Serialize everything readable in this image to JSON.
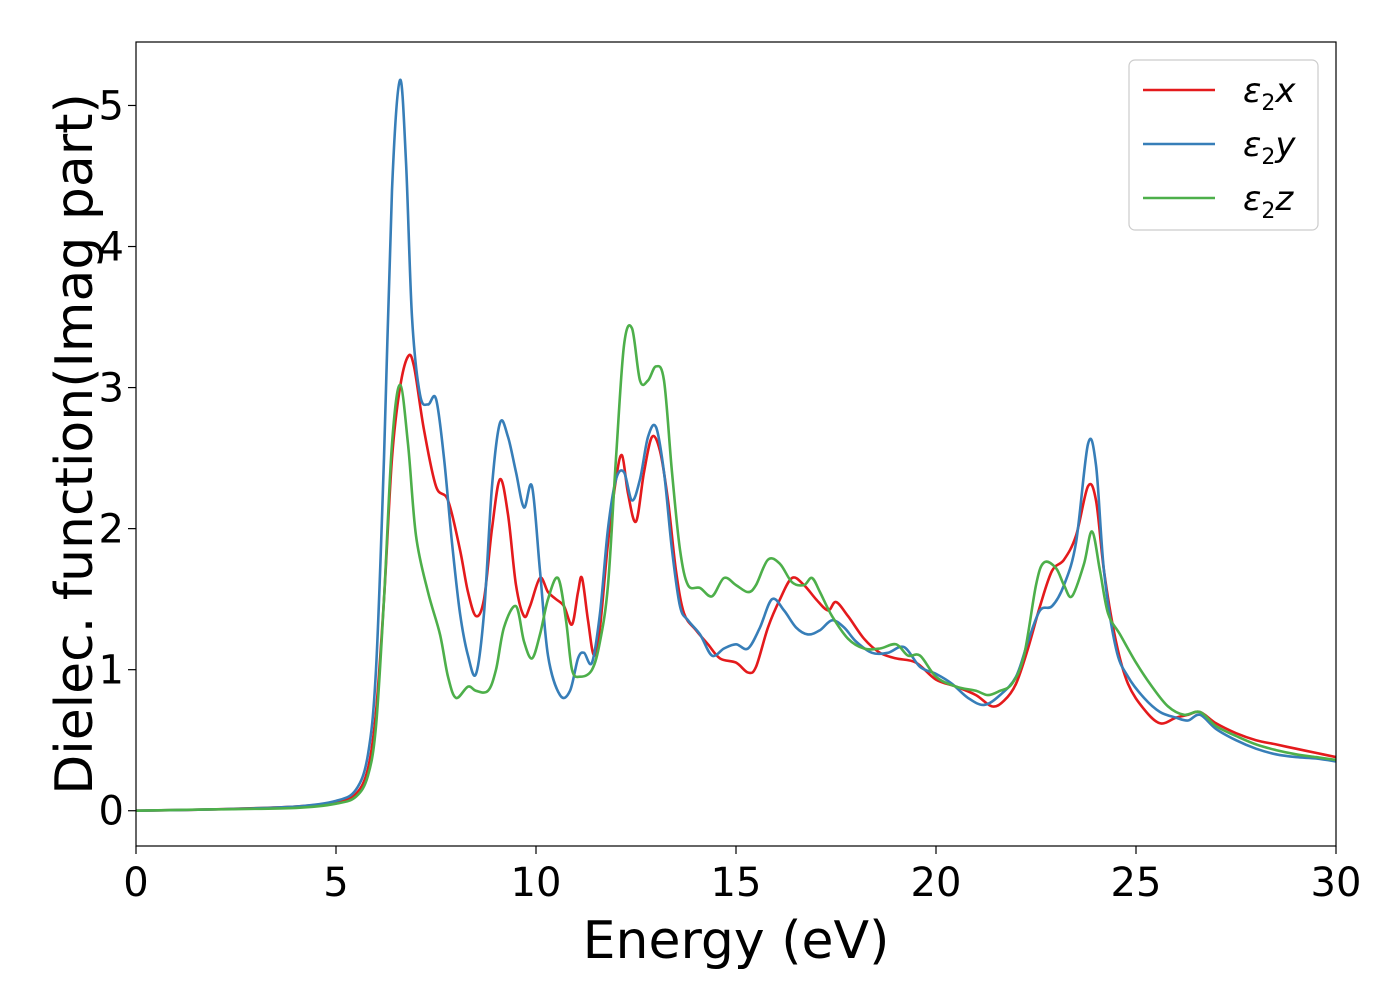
{
  "chart_data": {
    "type": "line",
    "title": "",
    "xlabel": "Energy (eV)",
    "ylabel": "Dielec. function(Imag part)",
    "xlim": [
      0,
      30
    ],
    "ylim": [
      -0.25,
      5.45
    ],
    "xticks": [
      0,
      5,
      10,
      15,
      20,
      25,
      30
    ],
    "yticks": [
      0,
      1,
      2,
      3,
      4,
      5
    ],
    "xtick_labels": [
      "0",
      "5",
      "10",
      "15",
      "20",
      "25",
      "30"
    ],
    "ytick_labels": [
      "0",
      "1",
      "2",
      "3",
      "4",
      "5"
    ],
    "grid": false,
    "legend_position": "top-right",
    "series": [
      {
        "name": "ε2x",
        "legend_base": "ε",
        "legend_sub": "2",
        "legend_suffix": "x",
        "color": "#e41a1c",
        "points": [
          [
            0,
            0
          ],
          [
            2,
            0.01
          ],
          [
            4,
            0.03
          ],
          [
            5,
            0.06
          ],
          [
            5.5,
            0.12
          ],
          [
            5.8,
            0.3
          ],
          [
            6.0,
            0.7
          ],
          [
            6.2,
            1.5
          ],
          [
            6.4,
            2.5
          ],
          [
            6.6,
            3.0
          ],
          [
            6.8,
            3.22
          ],
          [
            6.95,
            3.15
          ],
          [
            7.2,
            2.7
          ],
          [
            7.5,
            2.3
          ],
          [
            7.8,
            2.2
          ],
          [
            8.1,
            1.85
          ],
          [
            8.3,
            1.55
          ],
          [
            8.5,
            1.38
          ],
          [
            8.7,
            1.5
          ],
          [
            8.9,
            2.0
          ],
          [
            9.1,
            2.35
          ],
          [
            9.3,
            2.1
          ],
          [
            9.5,
            1.6
          ],
          [
            9.7,
            1.38
          ],
          [
            9.85,
            1.45
          ],
          [
            10.1,
            1.65
          ],
          [
            10.3,
            1.55
          ],
          [
            10.5,
            1.5
          ],
          [
            10.7,
            1.45
          ],
          [
            10.9,
            1.32
          ],
          [
            11.05,
            1.55
          ],
          [
            11.15,
            1.65
          ],
          [
            11.3,
            1.35
          ],
          [
            11.45,
            1.1
          ],
          [
            11.6,
            1.3
          ],
          [
            11.8,
            1.9
          ],
          [
            12.0,
            2.35
          ],
          [
            12.15,
            2.52
          ],
          [
            12.3,
            2.25
          ],
          [
            12.5,
            2.05
          ],
          [
            12.7,
            2.4
          ],
          [
            12.9,
            2.65
          ],
          [
            13.1,
            2.55
          ],
          [
            13.3,
            2.2
          ],
          [
            13.5,
            1.7
          ],
          [
            13.7,
            1.4
          ],
          [
            14.0,
            1.28
          ],
          [
            14.3,
            1.18
          ],
          [
            14.6,
            1.08
          ],
          [
            15.0,
            1.05
          ],
          [
            15.3,
            0.98
          ],
          [
            15.5,
            1.02
          ],
          [
            15.8,
            1.3
          ],
          [
            16.1,
            1.5
          ],
          [
            16.4,
            1.65
          ],
          [
            16.7,
            1.6
          ],
          [
            17.0,
            1.5
          ],
          [
            17.3,
            1.42
          ],
          [
            17.5,
            1.48
          ],
          [
            17.8,
            1.38
          ],
          [
            18.2,
            1.22
          ],
          [
            18.6,
            1.12
          ],
          [
            19.0,
            1.08
          ],
          [
            19.5,
            1.05
          ],
          [
            20.0,
            0.93
          ],
          [
            20.5,
            0.88
          ],
          [
            21.0,
            0.82
          ],
          [
            21.4,
            0.74
          ],
          [
            21.7,
            0.78
          ],
          [
            22.0,
            0.9
          ],
          [
            22.3,
            1.15
          ],
          [
            22.6,
            1.45
          ],
          [
            22.9,
            1.7
          ],
          [
            23.2,
            1.78
          ],
          [
            23.5,
            1.95
          ],
          [
            23.8,
            2.3
          ],
          [
            24.0,
            2.2
          ],
          [
            24.2,
            1.7
          ],
          [
            24.5,
            1.2
          ],
          [
            24.8,
            0.9
          ],
          [
            25.2,
            0.72
          ],
          [
            25.6,
            0.62
          ],
          [
            26.0,
            0.66
          ],
          [
            26.3,
            0.68
          ],
          [
            26.6,
            0.7
          ],
          [
            27.0,
            0.62
          ],
          [
            27.5,
            0.55
          ],
          [
            28.0,
            0.5
          ],
          [
            28.5,
            0.47
          ],
          [
            29.0,
            0.44
          ],
          [
            29.5,
            0.41
          ],
          [
            30.0,
            0.38
          ]
        ]
      },
      {
        "name": "ε2y",
        "legend_base": "ε",
        "legend_sub": "2",
        "legend_suffix": "y",
        "color": "#377eb8",
        "points": [
          [
            0,
            0
          ],
          [
            2,
            0.01
          ],
          [
            4,
            0.03
          ],
          [
            5,
            0.07
          ],
          [
            5.5,
            0.15
          ],
          [
            5.8,
            0.4
          ],
          [
            6.0,
            1.0
          ],
          [
            6.2,
            2.5
          ],
          [
            6.4,
            4.4
          ],
          [
            6.6,
            5.18
          ],
          [
            6.75,
            4.6
          ],
          [
            6.9,
            3.5
          ],
          [
            7.1,
            2.95
          ],
          [
            7.3,
            2.88
          ],
          [
            7.5,
            2.92
          ],
          [
            7.7,
            2.5
          ],
          [
            7.9,
            1.9
          ],
          [
            8.1,
            1.4
          ],
          [
            8.3,
            1.1
          ],
          [
            8.5,
            0.97
          ],
          [
            8.7,
            1.4
          ],
          [
            8.9,
            2.3
          ],
          [
            9.1,
            2.75
          ],
          [
            9.3,
            2.65
          ],
          [
            9.5,
            2.4
          ],
          [
            9.7,
            2.15
          ],
          [
            9.9,
            2.3
          ],
          [
            10.1,
            1.7
          ],
          [
            10.3,
            1.1
          ],
          [
            10.6,
            0.82
          ],
          [
            10.85,
            0.85
          ],
          [
            11.05,
            1.08
          ],
          [
            11.2,
            1.12
          ],
          [
            11.4,
            1.05
          ],
          [
            11.6,
            1.4
          ],
          [
            11.8,
            2.0
          ],
          [
            12.0,
            2.35
          ],
          [
            12.2,
            2.4
          ],
          [
            12.4,
            2.2
          ],
          [
            12.6,
            2.35
          ],
          [
            12.8,
            2.65
          ],
          [
            13.0,
            2.72
          ],
          [
            13.2,
            2.4
          ],
          [
            13.4,
            1.85
          ],
          [
            13.6,
            1.45
          ],
          [
            13.8,
            1.35
          ],
          [
            14.1,
            1.25
          ],
          [
            14.4,
            1.1
          ],
          [
            14.7,
            1.15
          ],
          [
            15.0,
            1.18
          ],
          [
            15.3,
            1.15
          ],
          [
            15.6,
            1.3
          ],
          [
            15.9,
            1.5
          ],
          [
            16.2,
            1.42
          ],
          [
            16.5,
            1.3
          ],
          [
            16.8,
            1.25
          ],
          [
            17.1,
            1.28
          ],
          [
            17.4,
            1.35
          ],
          [
            17.7,
            1.3
          ],
          [
            18.0,
            1.2
          ],
          [
            18.4,
            1.12
          ],
          [
            18.8,
            1.12
          ],
          [
            19.2,
            1.16
          ],
          [
            19.6,
            1.02
          ],
          [
            20.0,
            0.97
          ],
          [
            20.4,
            0.9
          ],
          [
            20.8,
            0.8
          ],
          [
            21.2,
            0.75
          ],
          [
            21.6,
            0.82
          ],
          [
            22.0,
            0.95
          ],
          [
            22.3,
            1.2
          ],
          [
            22.6,
            1.42
          ],
          [
            22.9,
            1.45
          ],
          [
            23.2,
            1.6
          ],
          [
            23.5,
            1.9
          ],
          [
            23.8,
            2.6
          ],
          [
            24.0,
            2.45
          ],
          [
            24.2,
            1.7
          ],
          [
            24.5,
            1.15
          ],
          [
            24.8,
            0.95
          ],
          [
            25.2,
            0.8
          ],
          [
            25.6,
            0.7
          ],
          [
            26.0,
            0.66
          ],
          [
            26.3,
            0.64
          ],
          [
            26.6,
            0.68
          ],
          [
            27.0,
            0.58
          ],
          [
            27.5,
            0.5
          ],
          [
            28.0,
            0.44
          ],
          [
            28.5,
            0.4
          ],
          [
            29.0,
            0.38
          ],
          [
            29.5,
            0.37
          ],
          [
            30.0,
            0.35
          ]
        ]
      },
      {
        "name": "ε2z",
        "legend_base": "ε",
        "legend_sub": "2",
        "legend_suffix": "z",
        "color": "#4daf4a",
        "points": [
          [
            0,
            0
          ],
          [
            2,
            0.01
          ],
          [
            4,
            0.02
          ],
          [
            5,
            0.05
          ],
          [
            5.5,
            0.1
          ],
          [
            5.8,
            0.25
          ],
          [
            6.0,
            0.6
          ],
          [
            6.2,
            1.5
          ],
          [
            6.4,
            2.6
          ],
          [
            6.6,
            3.02
          ],
          [
            6.8,
            2.6
          ],
          [
            7.0,
            1.95
          ],
          [
            7.3,
            1.55
          ],
          [
            7.6,
            1.25
          ],
          [
            7.8,
            0.95
          ],
          [
            8.0,
            0.8
          ],
          [
            8.3,
            0.88
          ],
          [
            8.5,
            0.85
          ],
          [
            8.8,
            0.85
          ],
          [
            9.0,
            1.0
          ],
          [
            9.2,
            1.3
          ],
          [
            9.5,
            1.45
          ],
          [
            9.7,
            1.2
          ],
          [
            9.9,
            1.08
          ],
          [
            10.1,
            1.25
          ],
          [
            10.3,
            1.5
          ],
          [
            10.55,
            1.65
          ],
          [
            10.75,
            1.35
          ],
          [
            10.9,
            1.0
          ],
          [
            11.1,
            0.95
          ],
          [
            11.4,
            1.0
          ],
          [
            11.6,
            1.2
          ],
          [
            11.8,
            1.6
          ],
          [
            12.0,
            2.5
          ],
          [
            12.2,
            3.3
          ],
          [
            12.4,
            3.42
          ],
          [
            12.6,
            3.05
          ],
          [
            12.8,
            3.05
          ],
          [
            13.0,
            3.15
          ],
          [
            13.2,
            3.05
          ],
          [
            13.4,
            2.4
          ],
          [
            13.6,
            1.85
          ],
          [
            13.8,
            1.6
          ],
          [
            14.1,
            1.58
          ],
          [
            14.4,
            1.52
          ],
          [
            14.7,
            1.65
          ],
          [
            15.0,
            1.6
          ],
          [
            15.3,
            1.55
          ],
          [
            15.5,
            1.6
          ],
          [
            15.8,
            1.78
          ],
          [
            16.1,
            1.75
          ],
          [
            16.4,
            1.62
          ],
          [
            16.7,
            1.6
          ],
          [
            16.9,
            1.65
          ],
          [
            17.1,
            1.55
          ],
          [
            17.4,
            1.38
          ],
          [
            17.8,
            1.22
          ],
          [
            18.2,
            1.15
          ],
          [
            18.6,
            1.15
          ],
          [
            19.0,
            1.18
          ],
          [
            19.3,
            1.1
          ],
          [
            19.6,
            1.1
          ],
          [
            20.0,
            0.95
          ],
          [
            20.5,
            0.88
          ],
          [
            21.0,
            0.85
          ],
          [
            21.3,
            0.82
          ],
          [
            21.6,
            0.85
          ],
          [
            21.9,
            0.9
          ],
          [
            22.2,
            1.1
          ],
          [
            22.5,
            1.6
          ],
          [
            22.7,
            1.76
          ],
          [
            23.0,
            1.72
          ],
          [
            23.2,
            1.6
          ],
          [
            23.4,
            1.52
          ],
          [
            23.7,
            1.75
          ],
          [
            23.9,
            1.98
          ],
          [
            24.1,
            1.7
          ],
          [
            24.3,
            1.4
          ],
          [
            24.6,
            1.25
          ],
          [
            25.0,
            1.05
          ],
          [
            25.4,
            0.88
          ],
          [
            25.8,
            0.74
          ],
          [
            26.2,
            0.68
          ],
          [
            26.6,
            0.7
          ],
          [
            27.0,
            0.6
          ],
          [
            27.5,
            0.53
          ],
          [
            28.0,
            0.47
          ],
          [
            28.5,
            0.43
          ],
          [
            29.0,
            0.4
          ],
          [
            29.5,
            0.38
          ],
          [
            30.0,
            0.36
          ]
        ]
      }
    ]
  }
}
